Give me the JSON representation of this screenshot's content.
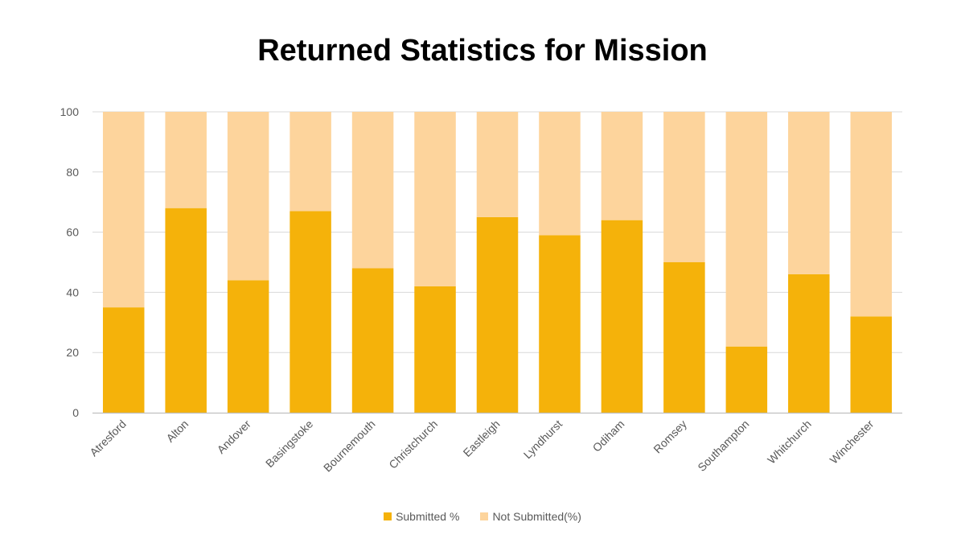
{
  "chart_data": {
    "type": "bar",
    "stacked": true,
    "title": "Returned Statistics for Mission",
    "xlabel": "",
    "ylabel": "",
    "ylim": [
      0,
      100
    ],
    "yticks": [
      0,
      20,
      40,
      60,
      80,
      100
    ],
    "grid": true,
    "legend_position": "bottom",
    "categories": [
      "Atresford",
      "Alton",
      "Andover",
      "Basingstoke",
      "Bournemouth",
      "Christchurch",
      "Eastleigh",
      "Lyndhurst",
      "Odiham",
      "Romsey",
      "Southampton",
      "Whitchurch",
      "Winchester"
    ],
    "series": [
      {
        "name": "Submitted %",
        "color": "#F5B20A",
        "values": [
          35,
          68,
          44,
          67,
          48,
          42,
          65,
          59,
          64,
          50,
          22,
          46,
          32
        ]
      },
      {
        "name": "Not Submitted(%)",
        "color": "#FDD49C",
        "values": [
          65,
          32,
          56,
          33,
          52,
          58,
          35,
          41,
          36,
          50,
          78,
          54,
          68
        ]
      }
    ]
  }
}
